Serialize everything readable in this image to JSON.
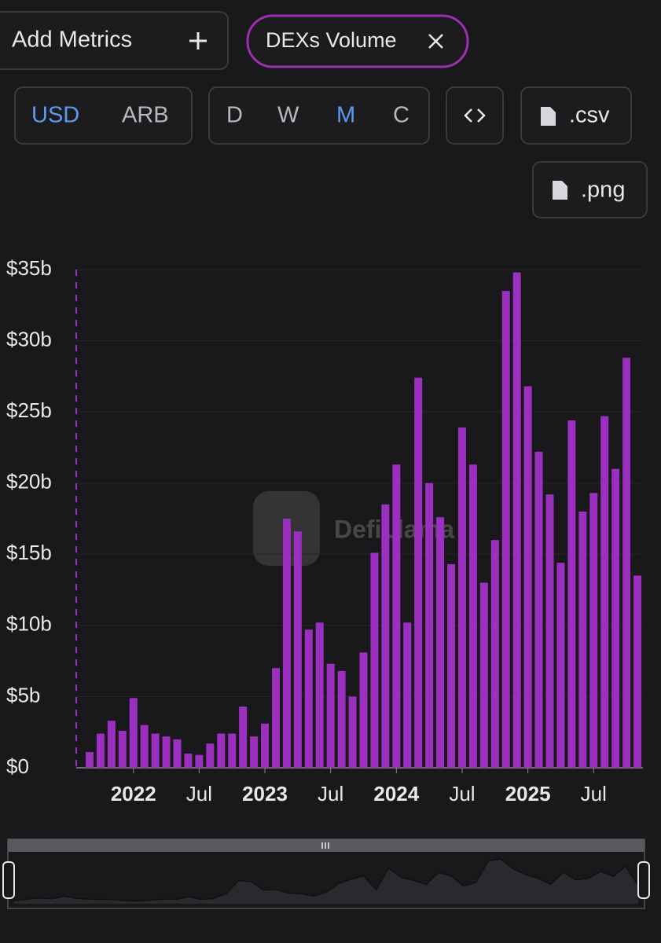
{
  "ui": {
    "add_metrics": "Add Metrics",
    "metric_chip": "DEXs Volume",
    "currency": [
      "USD",
      "ARB"
    ],
    "periods": [
      "D",
      "W",
      "M",
      "C"
    ],
    "csv": ".csv",
    "png": ".png",
    "watermark": "DefiLlama"
  },
  "chart_data": {
    "type": "bar",
    "color": "#9b30c0",
    "grid": true,
    "categories": [
      null,
      null,
      null,
      null,
      "2022",
      null,
      null,
      null,
      null,
      null,
      "Jul",
      null,
      null,
      null,
      null,
      null,
      "2023",
      null,
      null,
      null,
      null,
      null,
      "Jul",
      null,
      null,
      null,
      null,
      null,
      "2024",
      null,
      null,
      null,
      null,
      null,
      "Jul",
      null,
      null,
      null,
      null,
      null,
      "2025",
      null,
      null,
      null,
      null,
      null,
      "Jul",
      null,
      null,
      null,
      null
    ],
    "values": [
      1.1,
      2.4,
      3.3,
      2.6,
      4.9,
      3.0,
      2.4,
      2.2,
      2.0,
      1.0,
      0.9,
      1.7,
      2.4,
      2.4,
      4.3,
      2.2,
      3.1,
      7.0,
      17.5,
      16.6,
      9.7,
      10.2,
      7.3,
      6.8,
      5.0,
      8.1,
      15.1,
      18.5,
      21.3,
      10.2,
      27.4,
      20.0,
      17.6,
      14.3,
      23.9,
      21.3,
      13.0,
      16.0,
      33.5,
      34.8,
      26.8,
      22.2,
      19.2,
      14.4,
      24.4,
      18.0,
      19.3,
      24.7,
      21.0,
      28.8,
      13.5
    ],
    "ylim": [
      0,
      35
    ],
    "yticks": [
      {
        "value": 0,
        "label": "$0"
      },
      {
        "value": 5,
        "label": "$5b"
      },
      {
        "value": 10,
        "label": "$10b"
      },
      {
        "value": 15,
        "label": "$15b"
      },
      {
        "value": 20,
        "label": "$20b"
      },
      {
        "value": 25,
        "label": "$25b"
      },
      {
        "value": 30,
        "label": "$30b"
      },
      {
        "value": 35,
        "label": "$35b"
      }
    ]
  }
}
